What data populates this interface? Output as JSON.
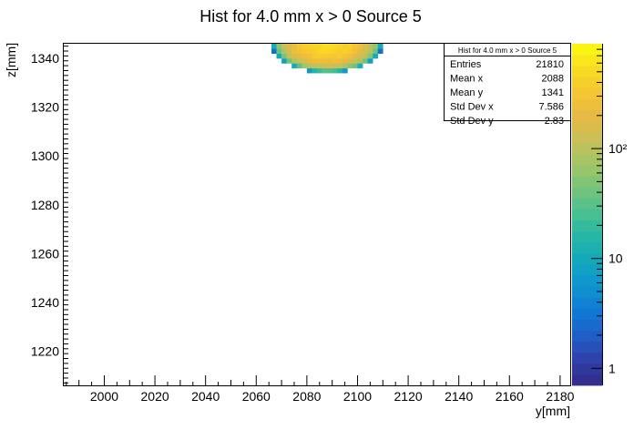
{
  "chart_data": {
    "type": "heatmap",
    "title": "Hist for 4.0 mm x > 0 Source 5",
    "xlabel": "y[mm]",
    "ylabel": "z[mm]",
    "xlim": [
      1984,
      2184
    ],
    "ylim": [
      1206,
      1346
    ],
    "x_ticks": [
      2000,
      2020,
      2040,
      2060,
      2080,
      2100,
      2120,
      2140,
      2160,
      2180
    ],
    "y_ticks": [
      1220,
      1240,
      1260,
      1280,
      1300,
      1320,
      1340
    ],
    "colorbar": {
      "scale": "log",
      "range": [
        0.7,
        900
      ],
      "ticks": [
        {
          "value": 1,
          "label": "1"
        },
        {
          "value": 10,
          "label": "10"
        },
        {
          "value": 100,
          "label": "10²"
        }
      ]
    },
    "blob": {
      "center_x": 2088,
      "center_z": 1346,
      "radius_x": 22,
      "radius_z": 12,
      "peak": 500
    },
    "stats": {
      "title": "Hist for 4.0 mm x > 0 Source 5",
      "rows": [
        {
          "label": "Entries",
          "value": "21810"
        },
        {
          "label": "Mean x",
          "value": "2088"
        },
        {
          "label": "Mean y",
          "value": "1341"
        },
        {
          "label": "Std Dev x",
          "value": "7.586"
        },
        {
          "label": "Std Dev y",
          "value": "2.83"
        }
      ]
    }
  }
}
